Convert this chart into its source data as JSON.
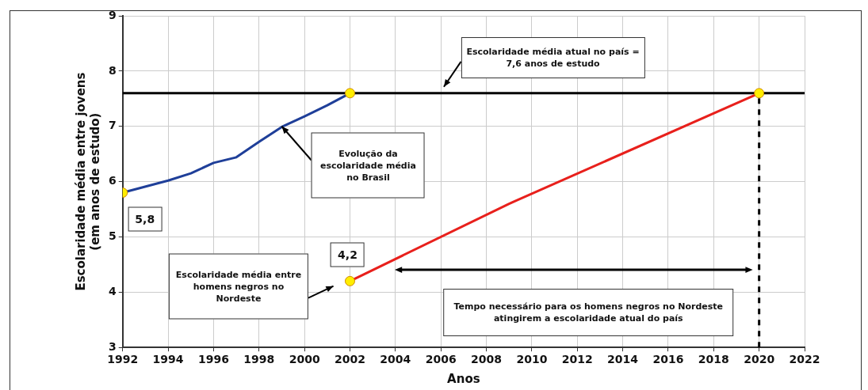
{
  "chart_data": {
    "type": "line",
    "xlabel": "Anos",
    "ylabel": "Escolaridade média entre jovens\n(em anos de estudo)",
    "xlim": [
      1992,
      2022
    ],
    "xticks": [
      1992,
      1994,
      1996,
      1998,
      2000,
      2002,
      2004,
      2006,
      2008,
      2010,
      2012,
      2014,
      2016,
      2018,
      2020,
      2022
    ],
    "ylim": [
      3,
      9
    ],
    "yticks": [
      3,
      4,
      5,
      6,
      7,
      8,
      9
    ],
    "grid": true,
    "legend": false,
    "series": [
      {
        "color": "#1f3f99",
        "marker": "none",
        "x": [
          1992,
          1994,
          1995,
          1996,
          1997,
          1998,
          1999,
          2000,
          2001,
          2002
        ],
        "values": [
          5.8,
          6.02,
          6.15,
          6.34,
          6.44,
          6.72,
          6.99,
          7.18,
          7.38,
          7.6
        ]
      },
      {
        "color": "#e8201c",
        "marker": "none",
        "x": [
          2002,
          2009,
          2020
        ],
        "values": [
          4.2,
          5.6,
          7.6
        ]
      },
      {
        "type": "scatter",
        "color": "#ffee00",
        "marker": "circle",
        "x": [
          1992,
          2002,
          2002,
          2020
        ],
        "values": [
          5.8,
          7.6,
          4.2,
          7.6
        ]
      }
    ],
    "ref_lines": [
      {
        "axis": "y",
        "value": 7.6,
        "color": "#000000",
        "line_style": "solid"
      },
      {
        "axis": "x",
        "value": 2020,
        "color": "#000000",
        "line_style": "dashed"
      }
    ],
    "annotations": [
      {
        "text": "5,8",
        "x": 1992,
        "y": 5.8
      },
      {
        "text": "4,2",
        "x": 2002,
        "y": 4.2
      },
      "Escolaridade média atual no país =\n7,6 anos de estudo",
      {
        "text": "Evolução da\nescolaridade média\nno Brasil",
        "x": 1999,
        "y": 7.0
      },
      "Escolaridade média entre\nhomens negros no\nNordeste",
      "Tempo necessário para os homens negros no Nordeste\natingirem a escolaridade atual do país"
    ]
  }
}
